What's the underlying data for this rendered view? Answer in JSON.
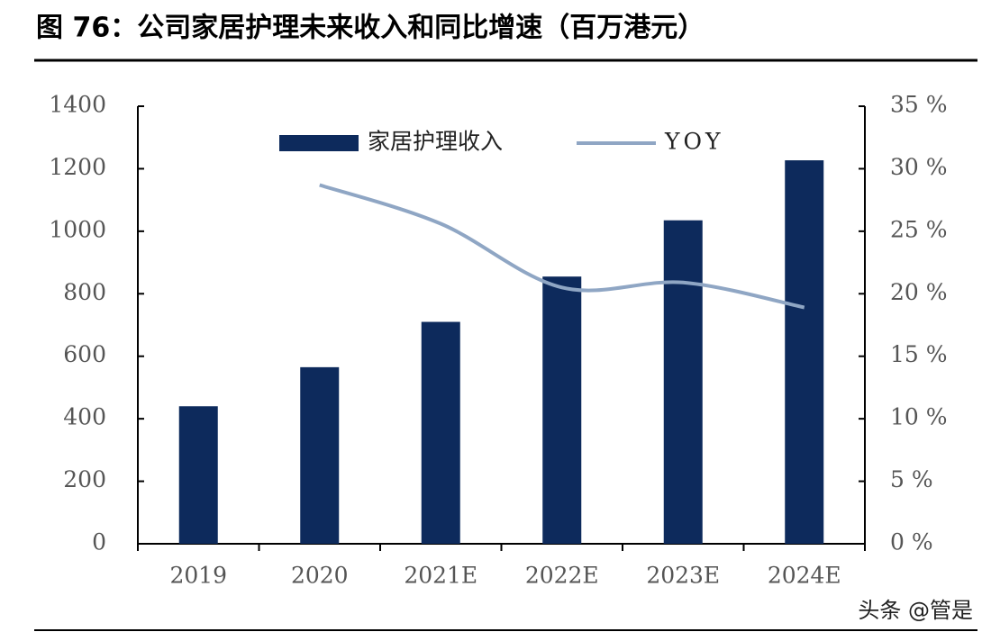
{
  "chart_data": {
    "type": "bar-line",
    "title": "图 76：公司家居护理未来收入和同比增速（百万港元）",
    "watermark": "头条 @管是",
    "categories": [
      "2019",
      "2020",
      "2021E",
      "2022E",
      "2023E",
      "2024E"
    ],
    "series": [
      {
        "name": "家居护理收入",
        "color": "#0d2a5c",
        "type": "bar",
        "values": [
          440,
          565,
          710,
          855,
          1035,
          1227
        ]
      },
      {
        "name": "YOY",
        "color": "#8fa6c4",
        "type": "line",
        "axis": "y2",
        "values": [
          null,
          28.7,
          25.6,
          20.5,
          20.9,
          18.9
        ]
      }
    ],
    "ylim": [
      0,
      1400
    ],
    "yticks": [
      0,
      200,
      400,
      600,
      800,
      1000,
      1200,
      1400
    ],
    "y2lim": [
      0,
      35
    ],
    "y2ticks": [
      {
        "value": 0,
        "label": "0 %"
      },
      {
        "value": 5,
        "label": "5 %"
      },
      {
        "value": 10,
        "label": "10 %"
      },
      {
        "value": 15,
        "label": "15 %"
      },
      {
        "value": 20,
        "label": "20 %"
      },
      {
        "value": 25,
        "label": "25 %"
      },
      {
        "value": 30,
        "label": "30 %"
      },
      {
        "value": 35,
        "label": "35 %"
      }
    ],
    "legend": "top"
  }
}
